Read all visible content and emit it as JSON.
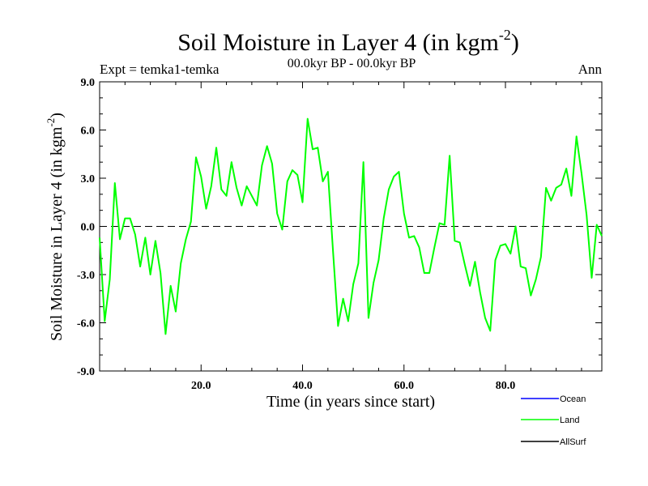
{
  "chart_data": {
    "type": "line",
    "title": "Soil Moisture in Layer 4 (in kgm",
    "title_sup": "-2",
    "title_close": ")",
    "subtitle_left": "Expt = temka1-temka",
    "subtitle_center": "00.0kyr BP - 00.0kyr BP",
    "subtitle_right": "Ann",
    "xlabel": "Time (in years since start)",
    "ylabel": "Soil Moisture in Layer 4 (in kgm",
    "ylabel_sup": "-2",
    "ylabel_close": ")",
    "xlim": [
      0,
      99
    ],
    "ylim": [
      -9,
      9
    ],
    "x_ticks": [
      20,
      40,
      60,
      80
    ],
    "x_tick_labels": [
      "20.0",
      "40.0",
      "60.0",
      "80.0"
    ],
    "y_ticks": [
      9,
      6,
      3,
      0,
      -3,
      -6,
      -9
    ],
    "y_tick_labels": [
      "9.0",
      "6.0",
      "3.0",
      "0.0",
      "-3.0",
      "-6.0",
      "-9.0"
    ],
    "zero_line": true,
    "legend_position": "bottom-right",
    "legend": [
      {
        "name": "Ocean",
        "color": "#0000ff"
      },
      {
        "name": "Land",
        "color": "#00ff00"
      },
      {
        "name": "AllSurf",
        "color": "#000000"
      }
    ],
    "series": [
      {
        "name": "Land",
        "color": "#00ff00",
        "x": [
          0,
          1,
          2,
          3,
          4,
          5,
          6,
          7,
          8,
          9,
          10,
          11,
          12,
          13,
          14,
          15,
          16,
          17,
          18,
          19,
          20,
          21,
          22,
          23,
          24,
          25,
          26,
          27,
          28,
          29,
          30,
          31,
          32,
          33,
          34,
          35,
          36,
          37,
          38,
          39,
          40,
          41,
          42,
          43,
          44,
          45,
          46,
          47,
          48,
          49,
          50,
          51,
          52,
          53,
          54,
          55,
          56,
          57,
          58,
          59,
          60,
          61,
          62,
          63,
          64,
          65,
          66,
          67,
          68,
          69,
          70,
          71,
          72,
          73,
          74,
          75,
          76,
          77,
          78,
          79,
          80,
          81,
          82,
          83,
          84,
          85,
          86,
          87,
          88,
          89,
          90,
          91,
          92,
          93,
          94,
          95,
          96,
          97,
          98,
          99
        ],
        "values": [
          -0.7,
          -5.9,
          -3.3,
          2.7,
          -0.8,
          0.5,
          0.5,
          -0.5,
          -2.5,
          -0.7,
          -3.0,
          -0.9,
          -2.9,
          -6.7,
          -3.7,
          -5.3,
          -2.3,
          -0.8,
          0.3,
          4.3,
          3.1,
          1.1,
          2.5,
          4.9,
          2.3,
          1.9,
          4.0,
          2.4,
          1.3,
          2.5,
          1.9,
          1.3,
          3.8,
          5.0,
          3.9,
          0.8,
          -0.2,
          2.8,
          3.5,
          3.2,
          1.5,
          6.7,
          4.8,
          4.9,
          2.8,
          3.4,
          -1.5,
          -6.2,
          -4.5,
          -5.9,
          -3.6,
          -2.3,
          4.0,
          -5.7,
          -3.5,
          -2.1,
          0.5,
          2.3,
          3.1,
          3.4,
          0.8,
          -0.7,
          -0.6,
          -1.3,
          -2.9,
          -2.9,
          -1.3,
          0.2,
          0.1,
          4.4,
          -0.9,
          -1.0,
          -2.4,
          -3.7,
          -2.2,
          -4.1,
          -5.7,
          -6.5,
          -2.1,
          -1.2,
          -1.1,
          -1.7,
          0.0,
          -2.5,
          -2.6,
          -4.3,
          -3.3,
          -1.9,
          2.4,
          1.6,
          2.4,
          2.6,
          3.6,
          1.9,
          5.6,
          3.3,
          0.7,
          -3.2,
          0.1,
          -0.6
        ]
      }
    ]
  }
}
